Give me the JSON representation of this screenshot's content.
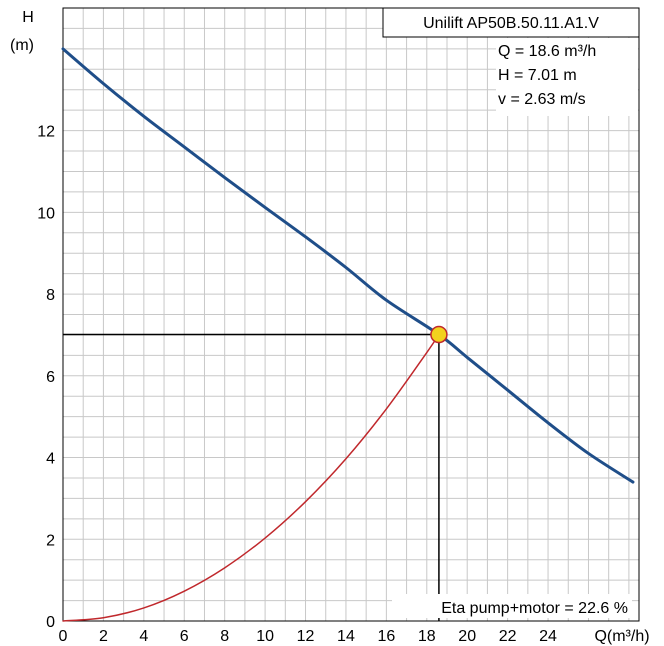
{
  "chart_data": {
    "type": "line",
    "title": "Unilift AP50B.50.11.A1.V",
    "xlabel": "Q(m³/h)",
    "ylabel": "H",
    "ylabel_unit": "(m)",
    "xlim": [
      0,
      28.5
    ],
    "ylim": [
      0,
      15
    ],
    "x_ticks": [
      0,
      2,
      4,
      6,
      8,
      10,
      12,
      14,
      16,
      18,
      20,
      22,
      24
    ],
    "y_ticks": [
      0,
      2,
      4,
      6,
      8,
      10,
      12
    ],
    "grid": true,
    "series": [
      {
        "role": "pump-curve",
        "color": "#1f4e89",
        "x": [
          0,
          2,
          4,
          6,
          8,
          10,
          12,
          14,
          16,
          18.6,
          20,
          22,
          24,
          26,
          28.2
        ],
        "y": [
          14.0,
          13.15,
          12.35,
          11.6,
          10.85,
          10.12,
          9.4,
          8.65,
          7.85,
          7.01,
          6.45,
          5.65,
          4.85,
          4.1,
          3.4
        ]
      },
      {
        "role": "system-curve",
        "color": "#c0282c",
        "x": [
          0,
          2,
          4,
          6,
          8,
          10,
          12,
          14,
          16,
          18,
          18.6
        ],
        "y": [
          0,
          0.08,
          0.32,
          0.73,
          1.3,
          2.03,
          2.92,
          3.97,
          5.19,
          6.57,
          7.01
        ]
      }
    ],
    "operating_point": {
      "x": 18.6,
      "y": 7.01,
      "color": "#f2d21e"
    },
    "info_lines": [
      "Q = 18.6 m³/h",
      "H = 7.01 m",
      "v = 2.63 m/s"
    ],
    "efficiency_label": "Eta pump+motor = 22.6 %"
  }
}
